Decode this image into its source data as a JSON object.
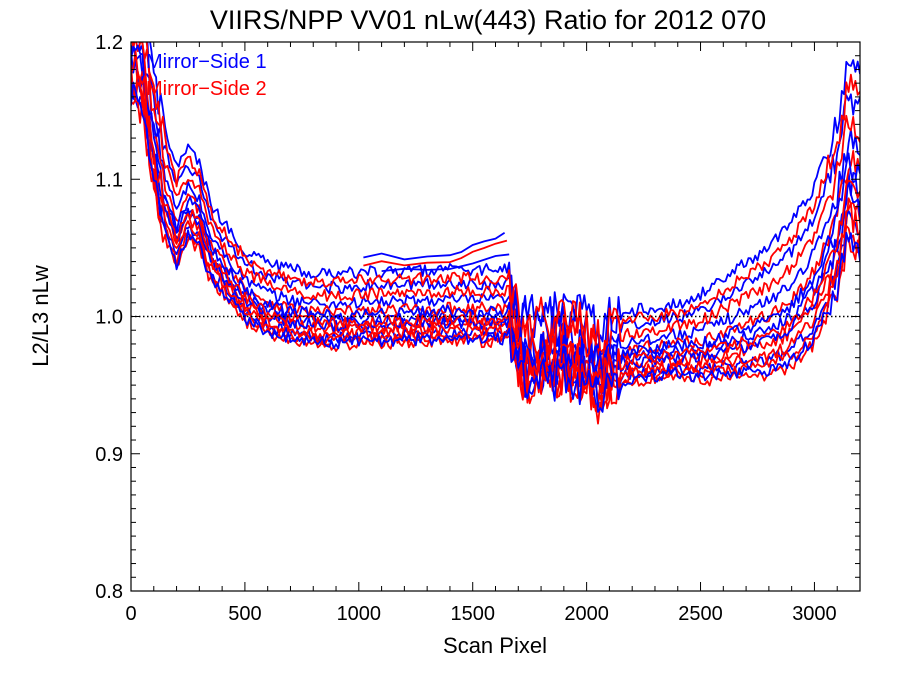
{
  "chart_data": {
    "type": "line",
    "title": "VIIRS/NPP VV01 nLw(443) Ratio for 2012 070",
    "xlabel": "Scan Pixel",
    "ylabel": "L2/L3 nLw",
    "xlim": [
      0,
      3200
    ],
    "ylim": [
      0.8,
      1.2
    ],
    "xticks": [
      "0",
      "500",
      "1000",
      "1500",
      "2000",
      "2500",
      "3000"
    ],
    "yticks": [
      "0.8",
      "0.9",
      "1.0",
      "1.1",
      "1.2"
    ],
    "reference_line": {
      "y": 1.0,
      "style": "dotted",
      "color": "#000000"
    },
    "legend": {
      "position": "top-left",
      "entries": [
        {
          "label": "Mirror−Side 1",
          "color": "#0000ff"
        },
        {
          "label": "Mirror−Side 2",
          "color": "#ff0000"
        }
      ]
    },
    "series_profile": {
      "x": [
        0,
        50,
        100,
        150,
        200,
        250,
        300,
        350,
        400,
        500,
        600,
        700,
        800,
        900,
        1000,
        1200,
        1400,
        1600,
        1650,
        1700,
        1750,
        1800,
        1900,
        2000,
        2050,
        2100,
        2200,
        2400,
        2500,
        2600,
        2800,
        2900,
        3000,
        3100,
        3150,
        3200
      ],
      "y": [
        1.19,
        1.18,
        1.12,
        1.085,
        1.06,
        1.08,
        1.07,
        1.045,
        1.035,
        1.015,
        1.005,
        1.0,
        0.998,
        0.997,
        0.998,
        0.999,
        1.0,
        1.0,
        1.0,
        0.975,
        0.965,
        0.97,
        0.97,
        0.965,
        0.955,
        0.965,
        0.97,
        0.975,
        0.975,
        0.98,
        0.99,
        1.0,
        1.02,
        1.06,
        1.1,
        1.09
      ]
    },
    "series": [
      {
        "mirror_side": 1,
        "color": "#0000ff",
        "offset": 0.0
      },
      {
        "mirror_side": 2,
        "color": "#ff0000",
        "offset": -0.006
      },
      {
        "mirror_side": 1,
        "color": "#0000ff",
        "offset": 0.012
      },
      {
        "mirror_side": 2,
        "color": "#ff0000",
        "offset": 0.006
      },
      {
        "mirror_side": 1,
        "color": "#0000ff",
        "offset": -0.012
      },
      {
        "mirror_side": 2,
        "color": "#ff0000",
        "offset": -0.018
      },
      {
        "mirror_side": 1,
        "color": "#0000ff",
        "offset": 0.024
      },
      {
        "mirror_side": 2,
        "color": "#ff0000",
        "offset": 0.018
      },
      {
        "mirror_side": 1,
        "color": "#0000ff",
        "offset": -0.004
      },
      {
        "mirror_side": 2,
        "color": "#ff0000",
        "offset": -0.01
      },
      {
        "mirror_side": 1,
        "color": "#0000ff",
        "offset": 0.034
      },
      {
        "mirror_side": 2,
        "color": "#ff0000",
        "offset": 0.028
      },
      {
        "mirror_side": 1,
        "color": "#0000ff",
        "offset": 0.004
      },
      {
        "mirror_side": 2,
        "color": "#ff0000",
        "offset": -0.002
      },
      {
        "mirror_side": 2,
        "color": "#ff0000",
        "offset": -0.014
      },
      {
        "mirror_side": 1,
        "color": "#0000ff",
        "offset": -0.016
      }
    ],
    "upper_segments": [
      {
        "color": "#0000ff",
        "x": [
          1020,
          1100,
          1200,
          1300,
          1400,
          1450,
          1500,
          1550,
          1600,
          1640
        ],
        "y": [
          1.044,
          1.045,
          1.042,
          1.043,
          1.044,
          1.048,
          1.052,
          1.055,
          1.058,
          1.06
        ]
      },
      {
        "color": "#ff0000",
        "x": [
          1020,
          1100,
          1200,
          1300,
          1400,
          1450,
          1500,
          1550,
          1600,
          1650
        ],
        "y": [
          1.038,
          1.04,
          1.037,
          1.038,
          1.04,
          1.043,
          1.046,
          1.049,
          1.052,
          1.055
        ]
      },
      {
        "color": "#0000ff",
        "x": [
          1100,
          1200,
          1300,
          1400,
          1500,
          1600,
          1660
        ],
        "y": [
          1.034,
          1.035,
          1.033,
          1.036,
          1.04,
          1.044,
          1.046
        ]
      }
    ]
  }
}
